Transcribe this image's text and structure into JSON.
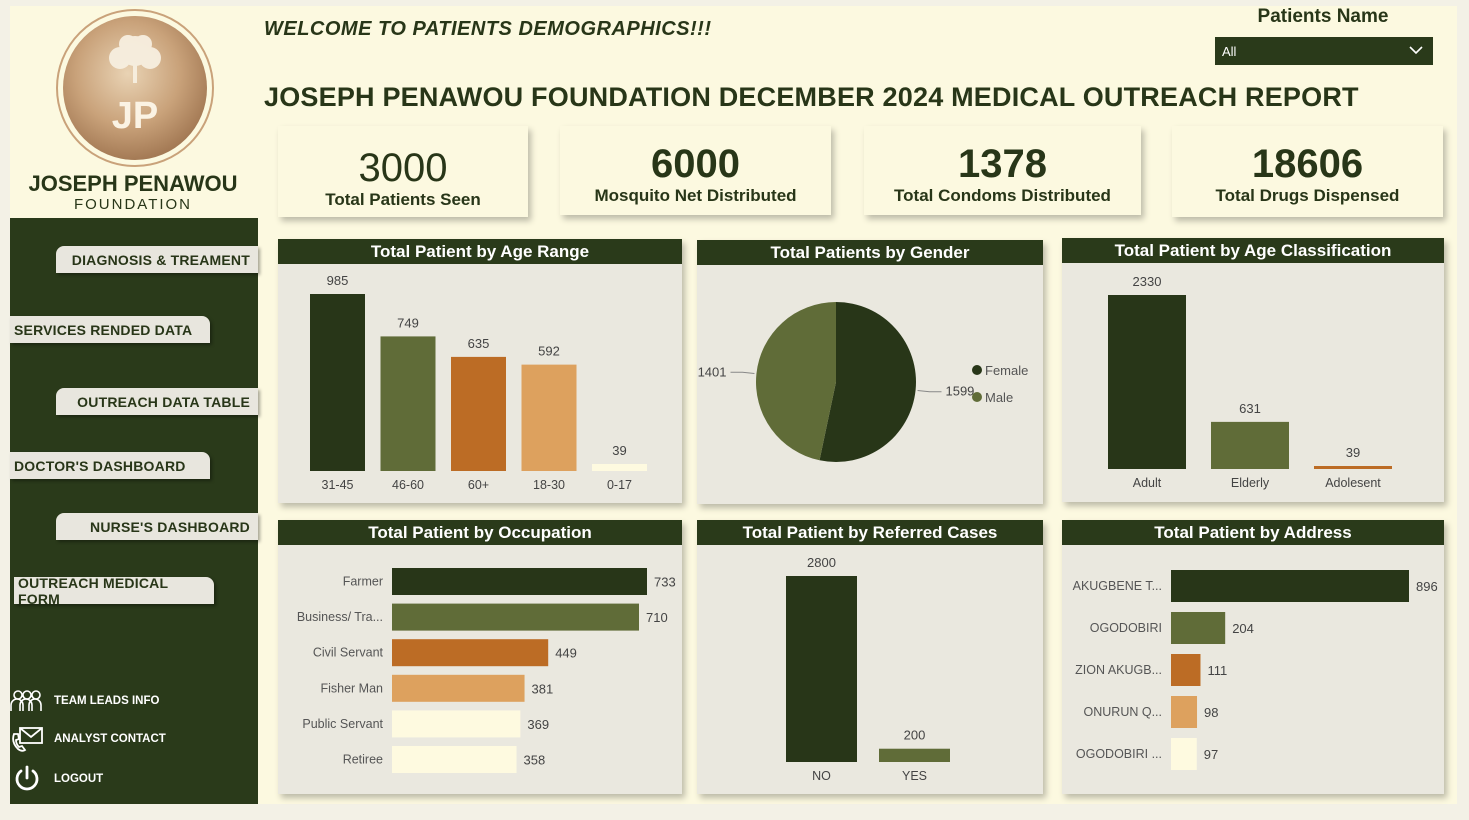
{
  "header": {
    "welcome": "WELCOME TO PATIENTS DEMOGRAPHICS!!!",
    "report_title": "JOSEPH PENAWOU FOUNDATION DECEMBER 2024 MEDICAL OUTREACH REPORT"
  },
  "logo": {
    "initials": "JP",
    "name": "JOSEPH PENAWOU",
    "sub": "FOUNDATION"
  },
  "slicer": {
    "title": "Patients Name",
    "value": "All"
  },
  "nav": {
    "items": [
      {
        "label": "DIAGNOSIS & TREAMENT"
      },
      {
        "label": "SERVICES RENDED DATA"
      },
      {
        "label": "OUTREACH DATA TABLE"
      },
      {
        "label": "DOCTOR'S DASHBOARD"
      },
      {
        "label": "NURSE'S DASHBOARD"
      },
      {
        "label": "OUTREACH MEDICAL FORM"
      }
    ],
    "footer": [
      {
        "label": "TEAM LEADS INFO",
        "icon": "team-icon"
      },
      {
        "label": "ANALYST CONTACT",
        "icon": "mail-phone-icon"
      },
      {
        "label": "LOGOUT",
        "icon": "power-icon"
      }
    ]
  },
  "kpis": [
    {
      "value": "3000",
      "label": "Total Patients Seen"
    },
    {
      "value": "6000",
      "label": "Mosquito Net Distributed"
    },
    {
      "value": "1378",
      "label": "Total Condoms Distributed"
    },
    {
      "value": "18606",
      "label": "Total Drugs Dispensed"
    }
  ],
  "colors": {
    "dark_green": "#283618",
    "olive": "#606c38",
    "rust": "#bc6c25",
    "tan": "#dda15e",
    "cream": "#fefae0",
    "card_bg": "#eae8df"
  },
  "chart_data": [
    {
      "id": "age-range",
      "type": "bar",
      "title": "Total Patient by Age Range",
      "categories": [
        "31-45",
        "46-60",
        "60+",
        "18-30",
        "0-17"
      ],
      "values": [
        985,
        749,
        635,
        592,
        39
      ],
      "ylim": [
        0,
        985
      ],
      "grid": false
    },
    {
      "id": "gender",
      "type": "pie",
      "title": "Total Patients by Gender",
      "categories": [
        "Female",
        "Male"
      ],
      "values": [
        1599,
        1401
      ],
      "legend": "right"
    },
    {
      "id": "age-class",
      "type": "bar",
      "title": "Total Patient by Age Classification",
      "categories": [
        "Adult",
        "Elderly",
        "Adolesent"
      ],
      "values": [
        2330,
        631,
        39
      ],
      "ylim": [
        0,
        2330
      ],
      "grid": false
    },
    {
      "id": "occupation",
      "type": "bar",
      "orientation": "horizontal",
      "title": "Total Patient by Occupation",
      "categories": [
        "Farmer",
        "Business/ Tra...",
        "Civil Servant",
        "Fisher Man",
        "Public Servant",
        "Retiree"
      ],
      "values": [
        733,
        710,
        449,
        381,
        369,
        358
      ],
      "xlim": [
        0,
        733
      ],
      "grid": false
    },
    {
      "id": "referred",
      "type": "bar",
      "title": "Total Patient by Referred Cases",
      "categories": [
        "NO",
        "YES"
      ],
      "values": [
        2800,
        200
      ],
      "ylim": [
        0,
        2800
      ],
      "grid": false
    },
    {
      "id": "address",
      "type": "bar",
      "orientation": "horizontal",
      "title": "Total Patient by Address",
      "categories": [
        "AKUGBENE T...",
        "OGODOBIRI",
        "ZION AKUGB...",
        "ONURUN Q...",
        "OGODOBIRI ..."
      ],
      "values": [
        896,
        204,
        111,
        98,
        97
      ],
      "xlim": [
        0,
        896
      ],
      "grid": false
    }
  ]
}
